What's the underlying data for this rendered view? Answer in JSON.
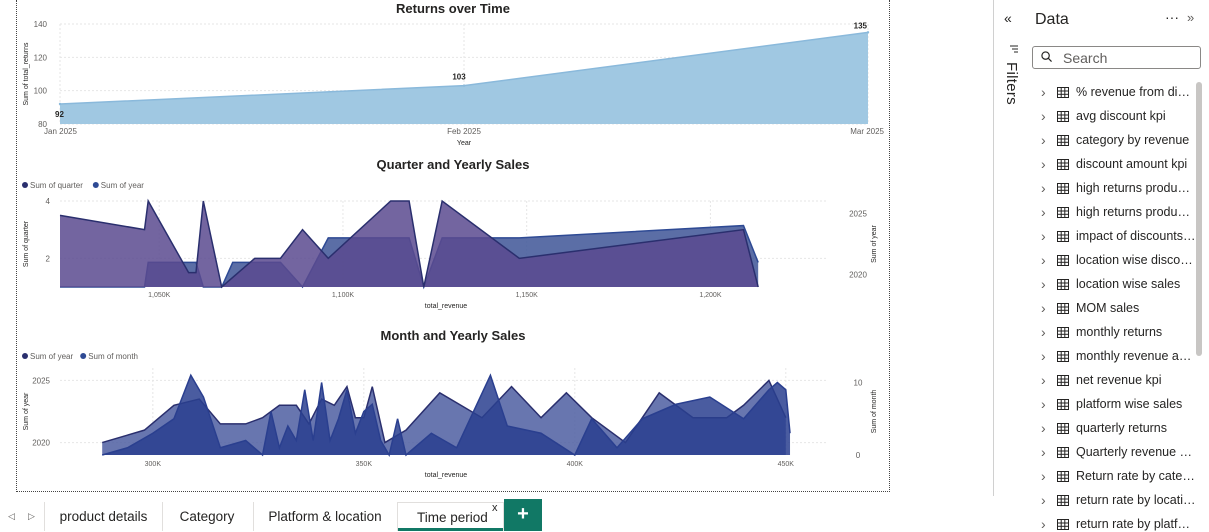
{
  "report": {
    "charts": [
      {
        "title": "Returns over Time",
        "xlabel": "Year",
        "ylabel": "Sum of total_returns",
        "y_ticks": [
          "80",
          "100",
          "120",
          "140"
        ],
        "x_ticks": [
          "Jan 2025",
          "Feb 2025",
          "Mar 2025"
        ],
        "data_labels": [
          "92",
          "103",
          "135"
        ]
      },
      {
        "title": "Quarter and Yearly Sales",
        "legend": [
          "Sum of quarter",
          "Sum of year"
        ],
        "xlabel": "total_revenue",
        "ylabel_left": "Sum of quarter",
        "ylabel_right": "Sum of year",
        "y_ticks_left": [
          "2",
          "4"
        ],
        "y_ticks_right": [
          "2020",
          "2025"
        ],
        "x_ticks": [
          "1,050K",
          "1,100K",
          "1,150K",
          "1,200K"
        ]
      },
      {
        "title": "Month and Yearly Sales",
        "legend": [
          "Sum of year",
          "Sum of month"
        ],
        "xlabel": "total_revenue",
        "ylabel_left": "Sum of year",
        "ylabel_right": "Sum of month",
        "y_ticks_left": [
          "2020",
          "2025"
        ],
        "y_ticks_right": [
          "0",
          "10"
        ],
        "x_ticks": [
          "300K",
          "350K",
          "400K",
          "450K"
        ]
      }
    ]
  },
  "colors": {
    "area_light": "#a0c8e2",
    "quarter": "#6b5599",
    "year": "#2e4a94",
    "accent": "#117865",
    "series_dark": "#283a8c"
  },
  "chart_data": [
    {
      "type": "area",
      "title": "Returns over Time",
      "x": [
        "Jan 2025",
        "Feb 2025",
        "Mar 2025"
      ],
      "series": [
        {
          "values": [
            92,
            103,
            135
          ]
        }
      ],
      "xlabel": "Year",
      "ylabel": "Sum of total_returns",
      "ylim": [
        80,
        140
      ],
      "grid": true
    },
    {
      "type": "area",
      "title": "Quarter and Yearly Sales",
      "xlabel": "total_revenue",
      "xlim": [
        1023000,
        1232000
      ],
      "legend_position": "top-left",
      "grid": true,
      "series": [
        {
          "name": "Sum of quarter",
          "axis": "left",
          "ylim": [
            1,
            4
          ],
          "points": [
            [
              1023000,
              3.5
            ],
            [
              1046000,
              3.0
            ],
            [
              1047000,
              4.0
            ],
            [
              1058000,
              1.5
            ],
            [
              1060000,
              1.5
            ],
            [
              1062000,
              4.0
            ],
            [
              1067000,
              1.0
            ],
            [
              1076000,
              2.0
            ],
            [
              1083000,
              2.0
            ],
            [
              1089000,
              3.0
            ],
            [
              1096000,
              2.0
            ],
            [
              1113000,
              4.0
            ],
            [
              1118000,
              4.0
            ],
            [
              1122000,
              1.0
            ],
            [
              1127000,
              4.0
            ],
            [
              1148000,
              2.0
            ],
            [
              1209000,
              3.0
            ],
            [
              1213000,
              1.0
            ]
          ]
        },
        {
          "name": "Sum of year",
          "axis": "right",
          "ylim": [
            2019,
            2026
          ],
          "points": [
            [
              1023000,
              2019
            ],
            [
              1046000,
              2019
            ],
            [
              1047000,
              2021
            ],
            [
              1058000,
              2021
            ],
            [
              1060000,
              2021
            ],
            [
              1062000,
              2019
            ],
            [
              1067000,
              2019
            ],
            [
              1070000,
              2021
            ],
            [
              1076000,
              2021
            ],
            [
              1083000,
              2021
            ],
            [
              1089000,
              2019
            ],
            [
              1096000,
              2023
            ],
            [
              1113000,
              2023
            ],
            [
              1118000,
              2023
            ],
            [
              1122000,
              2019
            ],
            [
              1127000,
              2023
            ],
            [
              1148000,
              2023
            ],
            [
              1209000,
              2024
            ],
            [
              1213000,
              2021
            ]
          ]
        }
      ]
    },
    {
      "type": "area",
      "title": "Month and Yearly Sales",
      "xlabel": "total_revenue",
      "xlim": [
        278000,
        460000
      ],
      "legend_position": "top-left",
      "grid": true,
      "series": [
        {
          "name": "Sum of year",
          "axis": "left",
          "ylim": [
            2019,
            2026
          ],
          "points": [
            [
              288000,
              2020
            ],
            [
              298000,
              2021
            ],
            [
              305000,
              2023
            ],
            [
              311000,
              2023.5
            ],
            [
              316000,
              2021.5
            ],
            [
              322000,
              2021.5
            ],
            [
              326000,
              2022
            ],
            [
              330000,
              2023
            ],
            [
              334000,
              2023
            ],
            [
              337000,
              2021.5
            ],
            [
              340000,
              2023.5
            ],
            [
              343000,
              2023
            ],
            [
              346000,
              2024.5
            ],
            [
              348000,
              2022
            ],
            [
              350000,
              2022
            ],
            [
              352000,
              2024.5
            ],
            [
              355000,
              2020
            ],
            [
              360000,
              2021
            ],
            [
              368000,
              2024
            ],
            [
              378000,
              2022
            ],
            [
              385000,
              2024.5
            ],
            [
              392000,
              2022
            ],
            [
              398000,
              2024
            ],
            [
              404000,
              2022
            ],
            [
              412000,
              2020
            ],
            [
              420000,
              2024
            ],
            [
              428000,
              2022
            ],
            [
              436000,
              2022
            ],
            [
              440000,
              2023
            ],
            [
              446000,
              2025
            ],
            [
              450000,
              2022
            ]
          ]
        },
        {
          "name": "Sum of month",
          "axis": "right",
          "ylim": [
            0,
            12
          ],
          "points": [
            [
              288000,
              0
            ],
            [
              294000,
              1
            ],
            [
              300000,
              3
            ],
            [
              305000,
              5
            ],
            [
              309000,
              11
            ],
            [
              312000,
              8
            ],
            [
              316000,
              1
            ],
            [
              322000,
              2
            ],
            [
              326000,
              0
            ],
            [
              328000,
              6
            ],
            [
              330000,
              1
            ],
            [
              332000,
              4
            ],
            [
              334000,
              2
            ],
            [
              336000,
              9
            ],
            [
              338000,
              2
            ],
            [
              340000,
              10
            ],
            [
              342000,
              2
            ],
            [
              344000,
              5
            ],
            [
              346000,
              9
            ],
            [
              348000,
              3
            ],
            [
              350000,
              6
            ],
            [
              352000,
              7
            ],
            [
              354000,
              2
            ],
            [
              356000,
              0
            ],
            [
              358000,
              5
            ],
            [
              360000,
              0
            ],
            [
              366000,
              3
            ],
            [
              372000,
              1
            ],
            [
              380000,
              11
            ],
            [
              384000,
              4
            ],
            [
              392000,
              3
            ],
            [
              400000,
              0
            ],
            [
              404000,
              5
            ],
            [
              410000,
              1
            ],
            [
              416000,
              5
            ],
            [
              424000,
              7
            ],
            [
              432000,
              8
            ],
            [
              440000,
              5
            ],
            [
              446000,
              9
            ],
            [
              448000,
              10
            ],
            [
              450000,
              9
            ],
            [
              451000,
              3
            ]
          ]
        }
      ]
    }
  ],
  "filters_pane": {
    "label": "Filters"
  },
  "data_pane": {
    "title": "Data",
    "search_placeholder": "Search",
    "fields": [
      "% revenue from disc...",
      "avg discount kpi",
      "category by revenue",
      "discount amount kpi",
      "high returns product...",
      "high returns product...",
      "impact of discounts ...",
      "location wise discou...",
      "location wise sales",
      "MOM sales",
      "monthly returns",
      "monthly revenue acr...",
      "net revenue kpi",
      "platform wise sales",
      "quarterly returns",
      "Quarterly revenue ac...",
      "Return rate by categ...",
      "return rate by location",
      "return rate by platfor..."
    ]
  },
  "tabs": [
    {
      "label": "product details",
      "active": false
    },
    {
      "label": "Category",
      "active": false
    },
    {
      "label": "Platform & location",
      "active": false
    },
    {
      "label": "Time period",
      "active": true
    }
  ],
  "tab_close": "x",
  "add_page": "+"
}
